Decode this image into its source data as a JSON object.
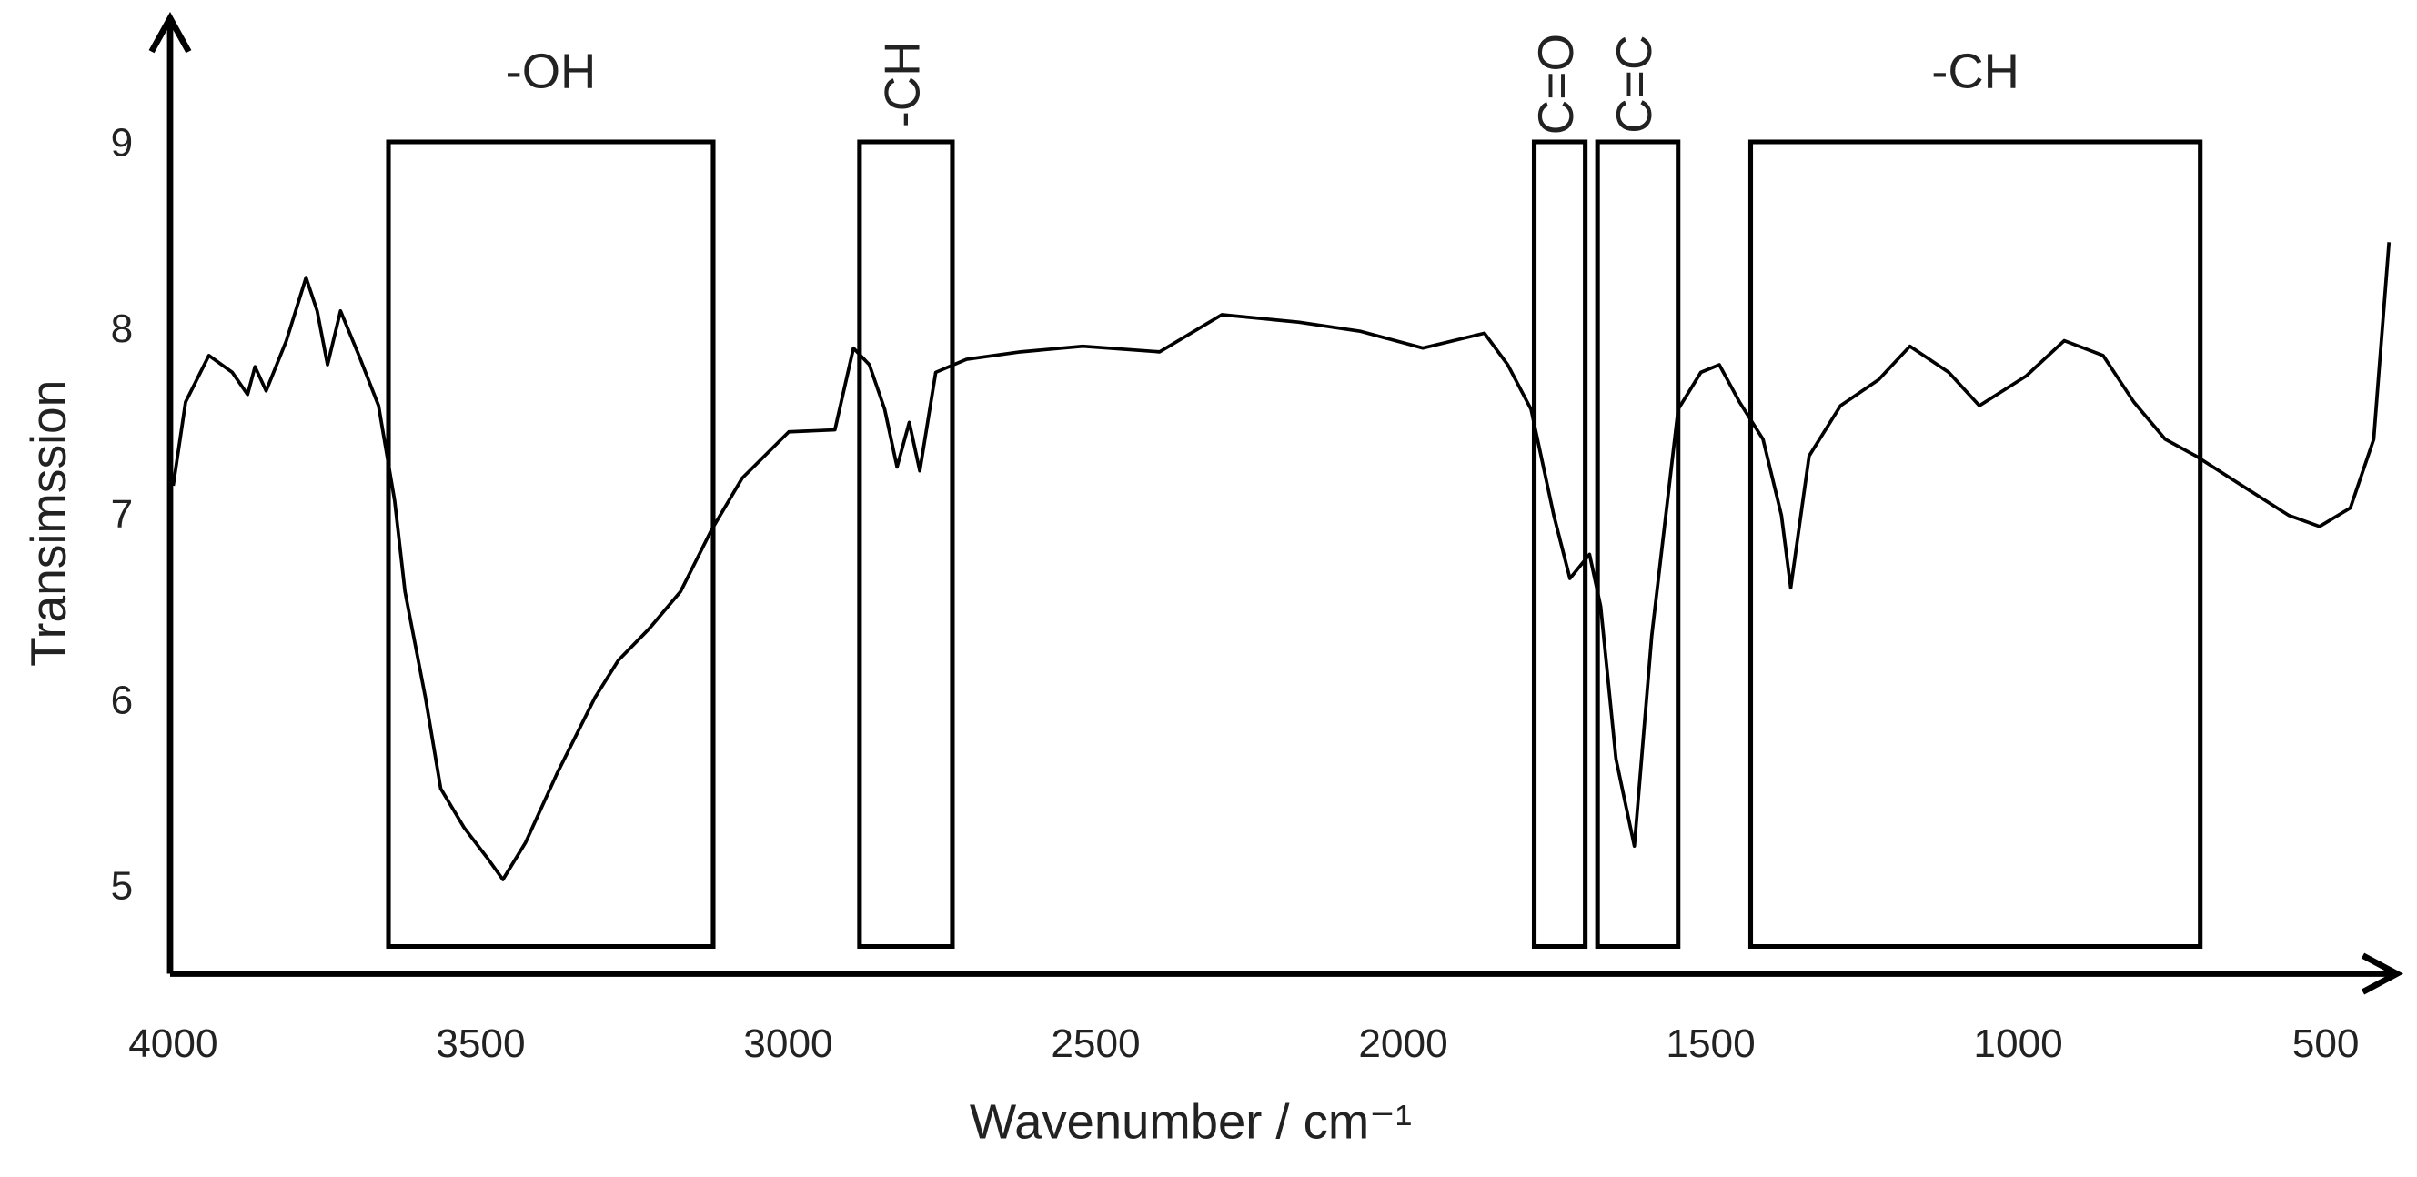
{
  "chart_data": {
    "type": "line",
    "xlabel": "Wavenumber / cm⁻¹",
    "ylabel": "Transimssion",
    "x": [
      4000,
      3980,
      3942,
      3904,
      3879,
      3867,
      3849,
      3816,
      3784,
      3766,
      3749,
      3728,
      3698,
      3666,
      3640,
      3623,
      3590,
      3565,
      3527,
      3490,
      3464,
      3427,
      3376,
      3314,
      3276,
      3226,
      3175,
      3125,
      3075,
      2999,
      2924,
      2894,
      2868,
      2843,
      2823,
      2803,
      2786,
      2760,
      2710,
      2622,
      2521,
      2396,
      2295,
      2170,
      2069,
      1968,
      1868,
      1830,
      1792,
      1755,
      1729,
      1697,
      1679,
      1654,
      1624,
      1596,
      1553,
      1516,
      1486,
      1453,
      1415,
      1385,
      1370,
      1340,
      1289,
      1227,
      1176,
      1113,
      1063,
      987,
      925,
      862,
      812,
      761,
      711,
      636,
      560,
      510,
      460,
      422,
      397
    ],
    "series": [
      {
        "color": "#000000",
        "values": [
          7.17,
          7.62,
          7.87,
          7.78,
          7.66,
          7.81,
          7.68,
          7.95,
          8.29,
          8.11,
          7.82,
          8.11,
          7.87,
          7.6,
          7.09,
          6.6,
          6.03,
          5.54,
          5.33,
          5.17,
          5.05,
          5.25,
          5.62,
          6.03,
          6.23,
          6.4,
          6.6,
          6.93,
          7.21,
          7.46,
          7.47,
          7.91,
          7.82,
          7.58,
          7.27,
          7.51,
          7.25,
          7.78,
          7.85,
          7.89,
          7.92,
          7.89,
          8.09,
          8.05,
          8.0,
          7.91,
          7.99,
          7.82,
          7.58,
          7.01,
          6.67,
          6.8,
          6.52,
          5.7,
          5.23,
          6.36,
          7.58,
          7.78,
          7.82,
          7.62,
          7.42,
          7.01,
          6.62,
          7.33,
          7.6,
          7.74,
          7.92,
          7.78,
          7.6,
          7.76,
          7.95,
          7.87,
          7.62,
          7.42,
          7.33,
          7.17,
          7.01,
          6.95,
          7.05,
          7.42,
          8.48
        ]
      }
    ],
    "xlim": [
      4000,
      380
    ],
    "ylim": [
      4.55,
      9.65
    ],
    "xticks": [
      4000,
      3500,
      3000,
      2500,
      2000,
      1500,
      1000,
      500
    ],
    "yticks": [
      5,
      6,
      7,
      8,
      9
    ],
    "annotations": [
      {
        "label": "-OH",
        "x_range": [
          3650,
          3122
        ],
        "y_range": [
          4.69,
          9.02
        ]
      },
      {
        "label": "-CH",
        "x_range": [
          2884,
          2733
        ],
        "y_range": [
          4.69,
          9.02
        ]
      },
      {
        "label": "C=O",
        "x_range": [
          1787,
          1704
        ],
        "y_range": [
          4.69,
          9.02
        ]
      },
      {
        "label": "C=C",
        "x_range": [
          1684,
          1553
        ],
        "y_range": [
          4.69,
          9.02
        ]
      },
      {
        "label": "-CH",
        "x_range": [
          1435,
          704
        ],
        "y_range": [
          4.69,
          9.02
        ]
      }
    ]
  }
}
